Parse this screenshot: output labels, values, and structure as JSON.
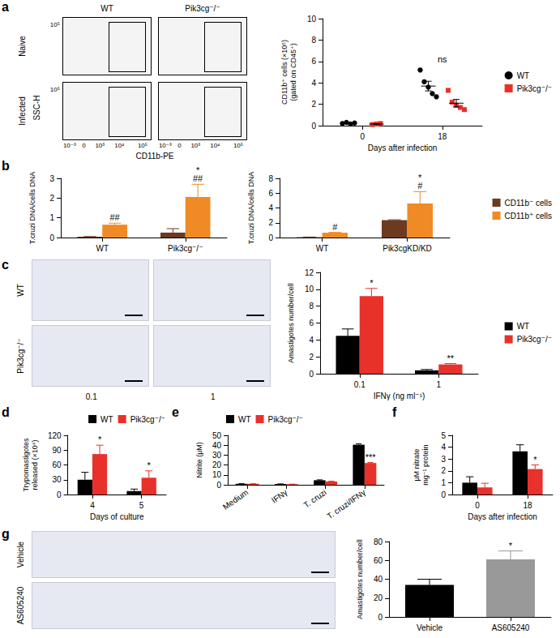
{
  "panel_labels": [
    "a",
    "b",
    "c",
    "d",
    "e",
    "f",
    "g"
  ],
  "flow_plots": {
    "columns": [
      "WT",
      "Pik3cg⁻/⁻"
    ],
    "rows": [
      "Naive",
      "Infected"
    ],
    "x_label": "CD11b-PE",
    "y_label": "SSC-H",
    "x_ticks": [
      "10⁻³",
      "0",
      "10³",
      "10⁴",
      "10⁵"
    ],
    "y_ticks": [
      "10⁵"
    ]
  },
  "micrographs_c": {
    "rows": [
      "WT",
      "Pik3cg⁻/⁻"
    ],
    "columns": [
      "0.1",
      "1"
    ]
  },
  "micrographs_g": {
    "rows": [
      "Vehicle",
      "AS605240"
    ]
  },
  "chart_data": [
    {
      "type": "scatter",
      "categories": [
        "0",
        "18"
      ],
      "x_label": "Days after infection",
      "y_label": [
        "CD11b⁺ cells (×10⁵)",
        "(gated on CD45⁺)"
      ],
      "ylim": [
        0,
        10
      ],
      "yticks": [
        0,
        2,
        4,
        6,
        8,
        10
      ],
      "grid": false,
      "legend": "right",
      "series": [
        {
          "name": "WT",
          "color": "#000000",
          "marker": "circle",
          "values": [
            [
              0.2,
              0.3,
              0.15,
              0.25
            ],
            [
              5.2,
              4.1,
              3.6,
              3.0,
              2.7
            ]
          ],
          "means": [
            0.22,
            3.7
          ],
          "errors": [
            0.04,
            0.45
          ]
        },
        {
          "name": "Pik3cg⁻/⁻",
          "color": "#e8312a",
          "marker": "square",
          "values": [
            [
              0.1,
              0.15,
              0.2
            ],
            [
              3.3,
              2.2,
              1.9,
              1.7,
              1.5
            ]
          ],
          "means": [
            0.15,
            2.1
          ],
          "errors": [
            0.03,
            0.35
          ]
        }
      ],
      "annotations": [
        {
          "category": "18",
          "text": "ns"
        }
      ]
    },
    {
      "type": "bar",
      "categories": [
        "WT",
        "Pik3cg⁻/⁻"
      ],
      "y_label": "T.cruzi DNA/cells DNA",
      "ylim": [
        0,
        3
      ],
      "yticks": [
        0,
        1,
        2,
        3
      ],
      "grid": false,
      "series": [
        {
          "color": "#6b3a1f",
          "values": [
            0.04,
            0.25
          ],
          "errors": [
            0.01,
            0.2
          ]
        },
        {
          "color": "#f08a24",
          "values": [
            0.65,
            2.05
          ],
          "errors": [
            0.08,
            0.65
          ],
          "annotations": [
            [
              "##"
            ],
            [
              "*",
              "##"
            ]
          ]
        }
      ]
    },
    {
      "type": "bar",
      "categories": [
        "WT",
        "Pik3cgKD/KD"
      ],
      "y_label": "T.cruzi DNA/cells DNA",
      "ylim": [
        0,
        8
      ],
      "yticks": [
        0,
        2,
        4,
        6,
        8
      ],
      "grid": false,
      "legend": "right",
      "series": [
        {
          "name": "CD11b⁻ cells",
          "color": "#6b3a1f",
          "values": [
            0.05,
            2.35
          ],
          "errors": [
            0.02,
            0.05
          ]
        },
        {
          "name": "CD11b⁺ cells",
          "color": "#f08a24",
          "values": [
            0.65,
            4.6
          ],
          "errors": [
            0.05,
            1.6
          ],
          "annotations": [
            [
              "#"
            ],
            [
              "*",
              "#"
            ]
          ]
        }
      ]
    },
    {
      "type": "bar",
      "categories": [
        "0.1",
        "1"
      ],
      "x_label": "IFNγ (ng ml⁻¹)",
      "y_label": "Amastigotes number/cell",
      "ylim": [
        0,
        12
      ],
      "yticks": [
        0,
        2,
        4,
        6,
        8,
        10,
        12
      ],
      "grid": false,
      "legend": "right",
      "series": [
        {
          "name": "WT",
          "color": "#000000",
          "values": [
            4.5,
            0.4
          ],
          "errors": [
            0.8,
            0.1
          ]
        },
        {
          "name": "Pik3cg⁻/⁻",
          "color": "#e8312a",
          "values": [
            9.2,
            1.1
          ],
          "errors": [
            0.9,
            0.1
          ],
          "annotations": [
            [
              "*"
            ],
            [
              "**"
            ]
          ]
        }
      ]
    },
    {
      "type": "bar",
      "categories": [
        "4",
        "5"
      ],
      "x_label": "Days of culture",
      "y_label": [
        "Trypomastigotes",
        "released (×10⁴)"
      ],
      "ylim": [
        0,
        120
      ],
      "yticks": [
        0,
        30,
        60,
        90,
        120
      ],
      "grid": false,
      "legend": "top-right",
      "series": [
        {
          "name": "WT",
          "color": "#000000",
          "values": [
            30,
            7
          ],
          "errors": [
            15,
            4
          ]
        },
        {
          "name": "Pik3cg⁻/⁻",
          "color": "#e8312a",
          "values": [
            82,
            34
          ],
          "errors": [
            18,
            14
          ],
          "annotations": [
            [
              "*"
            ],
            [
              "*"
            ]
          ]
        }
      ]
    },
    {
      "type": "bar",
      "categories": [
        "Medium",
        "IFNγ",
        "T. cruzi",
        "T. cruzi/IFNγ"
      ],
      "y_label": "Nitrite (μM)",
      "ylim": [
        0,
        50
      ],
      "yticks": [
        0,
        10,
        20,
        30,
        40,
        50
      ],
      "grid": false,
      "legend": "top-left",
      "series": [
        {
          "name": "WT",
          "color": "#000000",
          "values": [
            1.0,
            0.8,
            4.6,
            40.5
          ],
          "errors": [
            0.1,
            0.1,
            0.4,
            1.0
          ]
        },
        {
          "name": "Pik3cg⁻/⁻",
          "color": "#e8312a",
          "values": [
            1.0,
            0.6,
            3.4,
            22.0
          ],
          "errors": [
            0.1,
            0.1,
            0.2,
            0.5
          ],
          "annotations": [
            null,
            null,
            null,
            [
              "***"
            ]
          ]
        }
      ]
    },
    {
      "type": "bar",
      "categories": [
        "0",
        "18"
      ],
      "x_label": "Days after infection",
      "y_label": [
        "μM nitrate",
        "mg⁻¹ protein"
      ],
      "ylim": [
        0,
        5
      ],
      "yticks": [
        0,
        1,
        2,
        3,
        4,
        5
      ],
      "grid": false,
      "series": [
        {
          "color": "#000000",
          "values": [
            1.0,
            3.65
          ],
          "errors": [
            0.5,
            0.55
          ]
        },
        {
          "color": "#e8312a",
          "values": [
            0.6,
            2.15
          ],
          "errors": [
            0.35,
            0.35
          ],
          "annotations": [
            null,
            [
              "*"
            ]
          ]
        }
      ]
    },
    {
      "type": "bar",
      "categories": [
        "Vehicle",
        "AS605240"
      ],
      "y_label": "Amastigotes number/cell",
      "ylim": [
        0,
        80
      ],
      "yticks": [
        0,
        20,
        40,
        60,
        80
      ],
      "grid": false,
      "series": [
        {
          "colors": [
            "#000000",
            "#999999"
          ],
          "values": [
            34,
            61
          ],
          "errors": [
            6,
            9
          ],
          "annotations": [
            null,
            [
              "*"
            ]
          ]
        }
      ]
    }
  ]
}
